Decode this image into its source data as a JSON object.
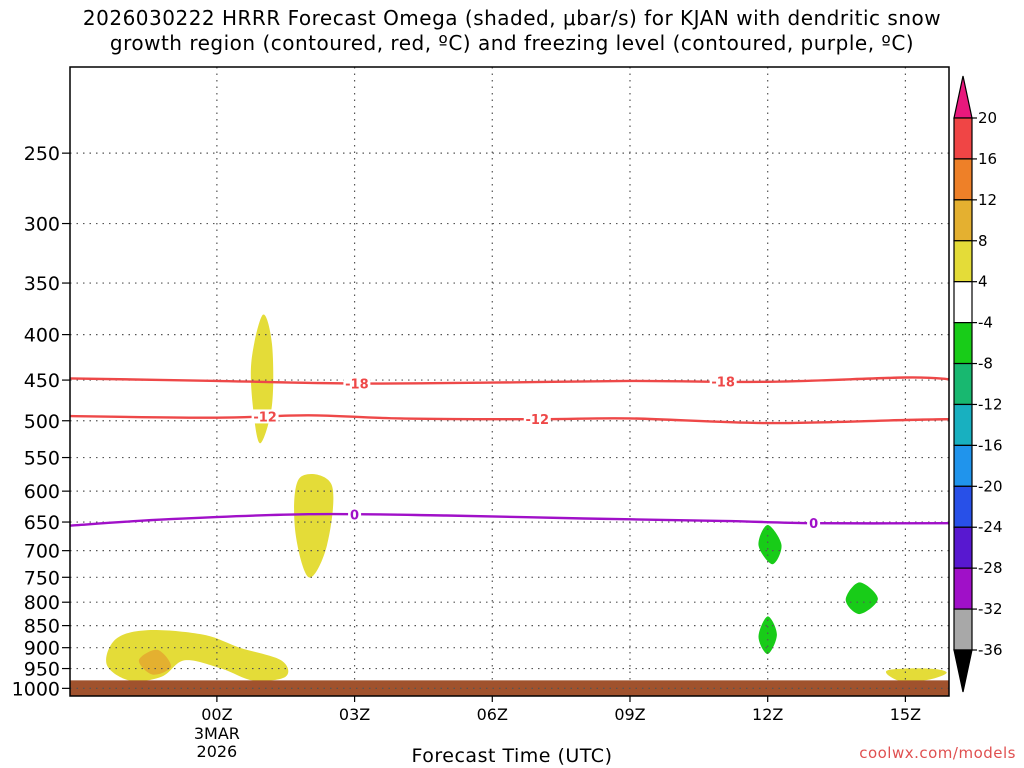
{
  "chart_data": {
    "type": "heatmap",
    "title_line1": "2026030222 HRRR Forecast Omega (shaded, μbar/s) for KJAN with dendritic snow",
    "title_line2": "growth region (contoured, red, ºC) and freezing level (contoured, purple, ºC)",
    "xlabel": "Forecast Time (UTC)",
    "ylabel": "",
    "x_unit_hours_from": "2026-03-03T00Z",
    "xlim": [
      -3.2,
      15.95
    ],
    "ylim_hPa": [
      1020,
      200
    ],
    "x_ticks": [
      {
        "x": 0,
        "label": "00Z",
        "sub": [
          "3MAR",
          "2026"
        ]
      },
      {
        "x": 3,
        "label": "03Z"
      },
      {
        "x": 6,
        "label": "06Z"
      },
      {
        "x": 9,
        "label": "09Z"
      },
      {
        "x": 12,
        "label": "12Z"
      },
      {
        "x": 15,
        "label": "15Z"
      }
    ],
    "y_ticks": [
      250,
      300,
      350,
      400,
      450,
      500,
      550,
      600,
      650,
      700,
      750,
      800,
      850,
      900,
      950,
      1000
    ],
    "colorbar": {
      "labels": [
        "20",
        "16",
        "12",
        "8",
        "4",
        "-4",
        "-8",
        "-12",
        "-16",
        "-20",
        "-24",
        "-28",
        "-32",
        "-36"
      ],
      "colors": [
        "#e8187c",
        "#f04545",
        "#ee8028",
        "#e4b030",
        "#e4dc38",
        "#ffffff",
        "#18cc18",
        "#18b870",
        "#18b0c0",
        "#2094ec",
        "#2850e8",
        "#5818d0",
        "#a010c8",
        "#a8a8a8",
        "#000000"
      ]
    },
    "contours": [
      {
        "name": "-18",
        "color": "#ee4848",
        "label_at_x": [
          3.05,
          11.03
        ],
        "points": [
          [
            -3.2,
            448
          ],
          [
            0,
            451
          ],
          [
            3,
            454
          ],
          [
            6,
            453
          ],
          [
            9,
            451
          ],
          [
            12,
            452
          ],
          [
            15,
            447
          ],
          [
            15.95,
            449
          ]
        ]
      },
      {
        "name": "-12",
        "color": "#ee4848",
        "label_at_x": [
          1.05,
          6.98
        ],
        "points": [
          [
            -3.2,
            494
          ],
          [
            0,
            496
          ],
          [
            2,
            493
          ],
          [
            4,
            497
          ],
          [
            7,
            498
          ],
          [
            9,
            497
          ],
          [
            12,
            503
          ],
          [
            15,
            499
          ],
          [
            15.95,
            498
          ]
        ]
      },
      {
        "name": "0",
        "color": "#a010c8",
        "label_at_x": [
          3.0,
          13.0
        ],
        "points": [
          [
            -3.2,
            656
          ],
          [
            -1,
            645
          ],
          [
            2,
            637
          ],
          [
            5,
            639
          ],
          [
            8,
            644
          ],
          [
            11,
            648
          ],
          [
            13,
            652
          ],
          [
            15.95,
            652
          ]
        ]
      }
    ],
    "omega_regions": [
      {
        "value_bin": "4 to 8",
        "color": "#e4dc38",
        "points": [
          [
            1.0,
            380
          ],
          [
            0.75,
            430
          ],
          [
            0.8,
            490
          ],
          [
            0.95,
            530
          ],
          [
            1.2,
            480
          ],
          [
            1.2,
            410
          ]
        ]
      },
      {
        "value_bin": "4 to 8",
        "color": "#e4dc38",
        "points": [
          [
            1.8,
            580
          ],
          [
            1.7,
            660
          ],
          [
            2.0,
            750
          ],
          [
            2.4,
            690
          ],
          [
            2.5,
            590
          ]
        ]
      },
      {
        "value_bin": "4 to 8",
        "color": "#e4dc38",
        "points": [
          [
            -1.5,
            860
          ],
          [
            -2.2,
            880
          ],
          [
            -2.4,
            940
          ],
          [
            -1.9,
            980
          ],
          [
            -1.2,
            970
          ],
          [
            -0.7,
            930
          ],
          [
            0.1,
            950
          ],
          [
            0.8,
            980
          ],
          [
            1.5,
            970
          ],
          [
            1.4,
            930
          ],
          [
            0.5,
            900
          ],
          [
            -0.3,
            870
          ]
        ]
      },
      {
        "value_bin": "4 to 8",
        "color": "#e4dc38",
        "points": [
          [
            14.6,
            955
          ],
          [
            14.9,
            982
          ],
          [
            15.5,
            978
          ],
          [
            15.9,
            960
          ],
          [
            15.5,
            950
          ]
        ]
      },
      {
        "value_bin": "8 to 12",
        "color": "#e4b030",
        "points": [
          [
            -1.3,
            905
          ],
          [
            -1.7,
            930
          ],
          [
            -1.4,
            965
          ],
          [
            -1.0,
            945
          ]
        ]
      },
      {
        "value_bin": "-4 to -8",
        "color": "#18cc18",
        "points": [
          [
            12.0,
            655
          ],
          [
            11.8,
            690
          ],
          [
            12.1,
            725
          ],
          [
            12.3,
            690
          ]
        ]
      },
      {
        "value_bin": "-4 to -8",
        "color": "#18cc18",
        "points": [
          [
            14.0,
            760
          ],
          [
            13.7,
            795
          ],
          [
            14.0,
            825
          ],
          [
            14.4,
            793
          ]
        ]
      },
      {
        "value_bin": "-4 to -8",
        "color": "#18cc18",
        "points": [
          [
            12.0,
            830
          ],
          [
            11.8,
            875
          ],
          [
            12.0,
            915
          ],
          [
            12.2,
            870
          ]
        ]
      }
    ],
    "terrain": {
      "color": "#a0522d",
      "from_hPa": 1000
    }
  },
  "watermark": "coolwx.com/models"
}
